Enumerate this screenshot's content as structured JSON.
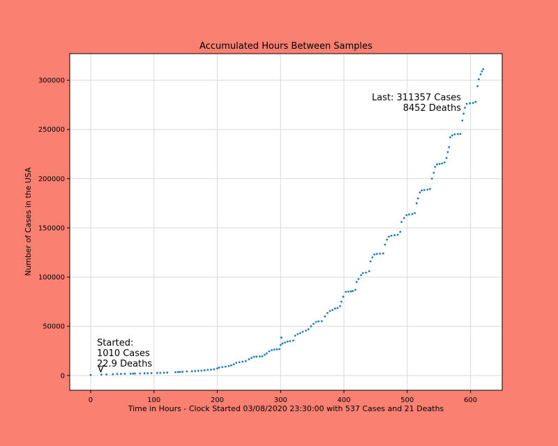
{
  "chart_data": {
    "type": "scatter",
    "title": "Accumulated Hours Between Samples",
    "xlabel": "Time in Hours - Clock Started 03/08/2020 23:30:00 with 537 Cases and 21 Deaths",
    "ylabel": "Number of Cases in the USA",
    "xlim": [
      -33,
      650
    ],
    "ylim": [
      -15000,
      327000
    ],
    "xticks": [
      0,
      100,
      200,
      300,
      400,
      500,
      600
    ],
    "yticks": [
      0,
      50000,
      100000,
      150000,
      200000,
      250000,
      300000
    ],
    "xtick_labels": [
      "0",
      "100",
      "200",
      "300",
      "400",
      "500",
      "600"
    ],
    "ytick_labels": [
      "0",
      "50000",
      "100000",
      "150000",
      "200000",
      "250000",
      "300000"
    ],
    "grid": true,
    "marker_color": "#1f77b4",
    "background_color": "#fa8072",
    "annotations": {
      "start": [
        "Started:",
        "1010 Cases",
        "22.9 Deaths",
        "V"
      ],
      "last": [
        "Last: 311357 Cases",
        "8452 Deaths"
      ]
    },
    "points": [
      [
        0,
        540
      ],
      [
        17,
        1010
      ],
      [
        25,
        1100
      ],
      [
        35,
        1300
      ],
      [
        42,
        1500
      ],
      [
        48,
        1600
      ],
      [
        54,
        1700
      ],
      [
        63,
        1800
      ],
      [
        67,
        1900
      ],
      [
        70,
        2000
      ],
      [
        78,
        2100
      ],
      [
        85,
        2200
      ],
      [
        90,
        2300
      ],
      [
        96,
        2400
      ],
      [
        105,
        2600
      ],
      [
        110,
        2700
      ],
      [
        116,
        2800
      ],
      [
        121,
        3000
      ],
      [
        134,
        3300
      ],
      [
        138,
        3500
      ],
      [
        141,
        3700
      ],
      [
        145,
        3800
      ],
      [
        152,
        4100
      ],
      [
        160,
        4300
      ],
      [
        165,
        4500
      ],
      [
        170,
        4700
      ],
      [
        175,
        5000
      ],
      [
        180,
        5300
      ],
      [
        185,
        5700
      ],
      [
        190,
        6000
      ],
      [
        195,
        6300
      ],
      [
        200,
        7200
      ],
      [
        203,
        8100
      ],
      [
        208,
        8600
      ],
      [
        213,
        9000
      ],
      [
        218,
        9600
      ],
      [
        222,
        10300
      ],
      [
        226,
        11400
      ],
      [
        230,
        12800
      ],
      [
        235,
        13500
      ],
      [
        240,
        14000
      ],
      [
        245,
        14600
      ],
      [
        250,
        16500
      ],
      [
        254,
        17800
      ],
      [
        258,
        19000
      ],
      [
        262,
        19200
      ],
      [
        267,
        19300
      ],
      [
        271,
        19500
      ],
      [
        275,
        21000
      ],
      [
        278,
        22500
      ],
      [
        282,
        24600
      ],
      [
        286,
        25800
      ],
      [
        290,
        26300
      ],
      [
        294,
        26600
      ],
      [
        298,
        26800
      ],
      [
        300,
        31000
      ],
      [
        301,
        38500
      ],
      [
        303,
        32500
      ],
      [
        307,
        33500
      ],
      [
        311,
        34500
      ],
      [
        315,
        35000
      ],
      [
        320,
        35500
      ],
      [
        323,
        40500
      ],
      [
        327,
        42000
      ],
      [
        331,
        43000
      ],
      [
        335,
        44500
      ],
      [
        340,
        45500
      ],
      [
        344,
        47000
      ],
      [
        348,
        50000
      ],
      [
        352,
        52500
      ],
      [
        356,
        54500
      ],
      [
        360,
        55000
      ],
      [
        365,
        55200
      ],
      [
        370,
        60000
      ],
      [
        374,
        63500
      ],
      [
        378,
        65500
      ],
      [
        382,
        66500
      ],
      [
        386,
        68000
      ],
      [
        390,
        68500
      ],
      [
        394,
        70500
      ],
      [
        396,
        75000
      ],
      [
        399,
        80000
      ],
      [
        403,
        85000
      ],
      [
        407,
        85200
      ],
      [
        411,
        85500
      ],
      [
        414,
        85800
      ],
      [
        418,
        87000
      ],
      [
        420,
        95000
      ],
      [
        423,
        98000
      ],
      [
        427,
        102000
      ],
      [
        430,
        104000
      ],
      [
        435,
        104500
      ],
      [
        440,
        106000
      ],
      [
        442,
        116000
      ],
      [
        445,
        120000
      ],
      [
        448,
        123000
      ],
      [
        452,
        123500
      ],
      [
        457,
        123800
      ],
      [
        462,
        124000
      ],
      [
        465,
        133000
      ],
      [
        468,
        138000
      ],
      [
        471,
        141000
      ],
      [
        475,
        142000
      ],
      [
        480,
        142500
      ],
      [
        485,
        143000
      ],
      [
        489,
        146000
      ],
      [
        491,
        156000
      ],
      [
        495,
        160000
      ],
      [
        499,
        163000
      ],
      [
        503,
        163500
      ],
      [
        508,
        164000
      ],
      [
        512,
        165000
      ],
      [
        515,
        175000
      ],
      [
        517,
        180000
      ],
      [
        520,
        186000
      ],
      [
        523,
        188000
      ],
      [
        527,
        188500
      ],
      [
        532,
        188800
      ],
      [
        536,
        189500
      ],
      [
        539,
        200000
      ],
      [
        542,
        206000
      ],
      [
        544,
        212000
      ],
      [
        547,
        214500
      ],
      [
        551,
        215000
      ],
      [
        555,
        215500
      ],
      [
        559,
        216500
      ],
      [
        562,
        221000
      ],
      [
        564,
        227000
      ],
      [
        566,
        232000
      ],
      [
        568,
        242000
      ],
      [
        571,
        244000
      ],
      [
        575,
        245000
      ],
      [
        580,
        245300
      ],
      [
        584,
        245500
      ],
      [
        587,
        259000
      ],
      [
        589,
        266000
      ],
      [
        591,
        272000
      ],
      [
        594,
        276000
      ],
      [
        599,
        276500
      ],
      [
        604,
        277000
      ],
      [
        608,
        278000
      ],
      [
        611,
        294000
      ],
      [
        613,
        301000
      ],
      [
        616,
        306000
      ],
      [
        618,
        309000
      ],
      [
        620,
        311357
      ]
    ]
  }
}
